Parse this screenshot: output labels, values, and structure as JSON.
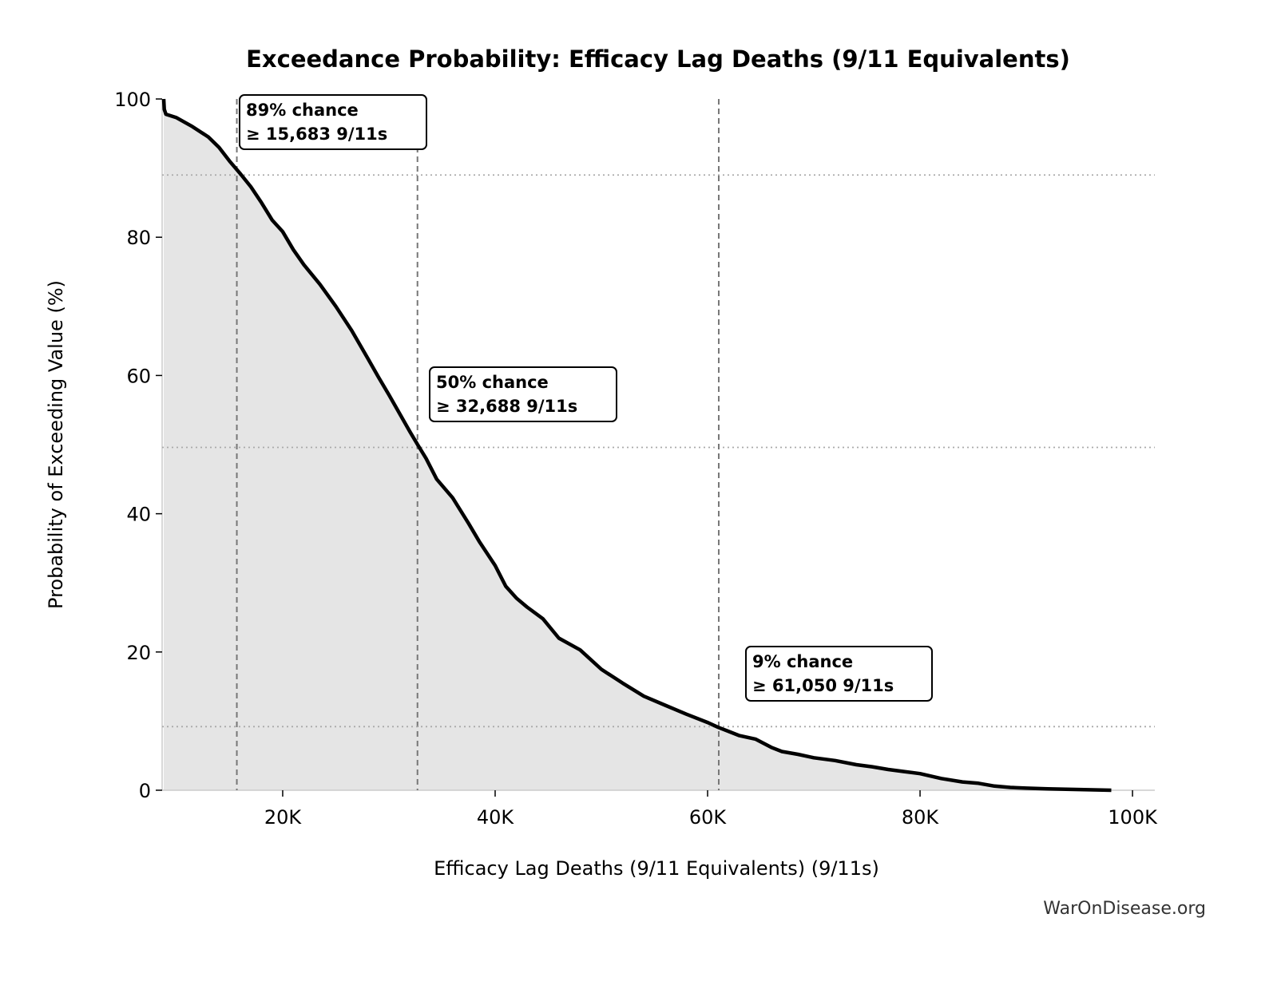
{
  "chart_data": {
    "type": "area",
    "title": "Exceedance Probability: Efficacy Lag Deaths (9/11 Equivalents)",
    "xlabel": "Efficacy Lag Deaths (9/11 Equivalents) (9/11s)",
    "ylabel": "Probability of Exceeding Value (%)",
    "xlim": [
      8650,
      102100
    ],
    "ylim": [
      0,
      100
    ],
    "xticks": [
      20000,
      40000,
      60000,
      80000,
      100000
    ],
    "xtick_labels": [
      "20K",
      "40K",
      "60K",
      "80K",
      "100K"
    ],
    "yticks": [
      0,
      20,
      40,
      60,
      80,
      100
    ],
    "ytick_labels": [
      "0",
      "20",
      "40",
      "60",
      "80",
      "100"
    ],
    "grid": false,
    "colors": {
      "line": "#000000",
      "fill": "#e5e5e5",
      "ref": "#777777"
    },
    "series": [
      {
        "x": [
          8800,
          8850,
          9000,
          10000,
          11500,
          13000,
          14000,
          15000,
          16000,
          17000,
          18000,
          19000,
          20000,
          21000,
          22000,
          23500,
          25000,
          26500,
          28000,
          29000,
          30000,
          31000,
          32000,
          32700,
          33500,
          34500,
          36000,
          37500,
          38500,
          40000,
          41000,
          42000,
          43000,
          44500,
          46000,
          48000,
          50000,
          52000,
          54000,
          56000,
          58000,
          60000,
          61000,
          62000,
          63000,
          64500,
          66000,
          67000,
          68500,
          70000,
          72000,
          74000,
          75500,
          77000,
          78500,
          80000,
          82000,
          84000,
          85500,
          87000,
          88500,
          90000,
          92000,
          95000,
          98000
        ],
        "y": [
          100,
          98.5,
          97.8,
          97.3,
          96,
          94.5,
          93,
          91,
          89.2,
          87.3,
          85,
          82.5,
          80.8,
          78.2,
          76,
          73.2,
          70,
          66.5,
          62.5,
          59.8,
          57.2,
          54.5,
          51.8,
          50,
          48,
          45,
          42.3,
          38.6,
          36,
          32.5,
          29.5,
          27.8,
          26.5,
          24.8,
          22,
          20.3,
          17.5,
          15.5,
          13.6,
          12.3,
          11,
          9.8,
          9.1,
          8.5,
          7.9,
          7.4,
          6.2,
          5.6,
          5.2,
          4.7,
          4.3,
          3.7,
          3.4,
          3,
          2.7,
          2.4,
          1.7,
          1.2,
          1,
          0.6,
          0.4,
          0.3,
          0.2,
          0.1,
          0
        ]
      }
    ],
    "reference_lines": [
      {
        "x": 15683,
        "y": 89,
        "label_line1": "89% chance",
        "label_line2": "≥ 15,683 9/11s"
      },
      {
        "x": 32688,
        "y": 49.6,
        "label_line1": "50% chance",
        "label_line2": "≥ 32,688 9/11s"
      },
      {
        "x": 61050,
        "y": 9.2,
        "label_line1": "9% chance",
        "label_line2": "≥ 61,050 9/11s"
      }
    ]
  },
  "watermark": "WarOnDisease.org"
}
